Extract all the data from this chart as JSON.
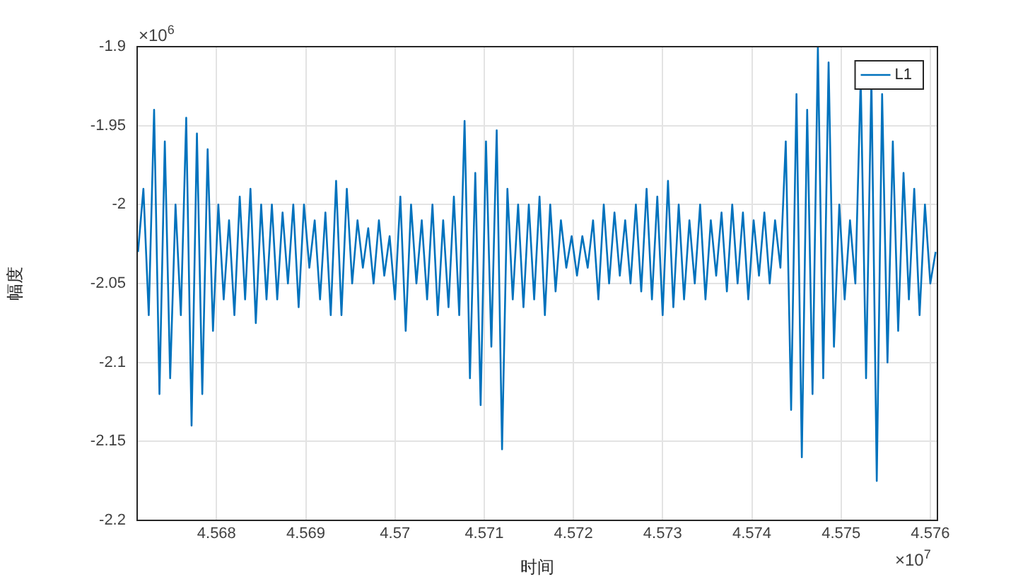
{
  "chart_data": {
    "type": "line",
    "xlabel": "时间",
    "ylabel": "幅度",
    "xlim": [
      4.56711,
      4.57608
    ],
    "xticks": [
      4.568,
      4.569,
      4.57,
      4.571,
      4.572,
      4.573,
      4.574,
      4.575,
      4.576
    ],
    "ylim": [
      -2.2,
      -1.9
    ],
    "yticks": [
      -2.2,
      -2.15,
      -2.1,
      -2.05,
      -2,
      -1.95,
      -1.9
    ],
    "grid": true,
    "legend": "top right",
    "x": [
      4.56712,
      4.56718,
      4.56724,
      4.5673,
      4.56736,
      4.56742,
      4.56748,
      4.56754,
      4.5676,
      4.56766,
      4.56772,
      4.56778,
      4.56784,
      4.5679,
      4.56796,
      4.56802,
      4.56808,
      4.56814,
      4.5682,
      4.56826,
      4.56832,
      4.56838,
      4.56844,
      4.5685,
      4.56856,
      4.56862,
      4.56868,
      4.56874,
      4.5688,
      4.56886,
      4.56892,
      4.56898,
      4.56904,
      4.5691,
      4.56916,
      4.56922,
      4.56928,
      4.56934,
      4.5694,
      4.56946,
      4.56952,
      4.56958,
      4.56964,
      4.5697,
      4.56976,
      4.56982,
      4.56988,
      4.56994,
      4.57,
      4.57006,
      4.57012,
      4.57018,
      4.57024,
      4.5703,
      4.57036,
      4.57042,
      4.57048,
      4.57054,
      4.5706,
      4.57066,
      4.57072,
      4.57078,
      4.57084,
      4.5709,
      4.57096,
      4.57102,
      4.57108,
      4.57114,
      4.5712,
      4.57126,
      4.57132,
      4.57138,
      4.57144,
      4.5715,
      4.57156,
      4.57162,
      4.57168,
      4.57174,
      4.5718,
      4.57186,
      4.57192,
      4.57198,
      4.57204,
      4.5721,
      4.57216,
      4.57222,
      4.57228,
      4.57234,
      4.5724,
      4.57246,
      4.57252,
      4.57258,
      4.57264,
      4.5727,
      4.57276,
      4.57282,
      4.57288,
      4.57294,
      4.573,
      4.57306,
      4.57312,
      4.57318,
      4.57324,
      4.5733,
      4.57336,
      4.57342,
      4.57348,
      4.57354,
      4.5736,
      4.57366,
      4.57372,
      4.57378,
      4.57384,
      4.5739,
      4.57396,
      4.57402,
      4.57408,
      4.57414,
      4.5742,
      4.57426,
      4.57432,
      4.57438,
      4.57444,
      4.5745,
      4.57456,
      4.57462,
      4.57468,
      4.57474,
      4.5748,
      4.57486,
      4.57492,
      4.57498,
      4.57504,
      4.5751,
      4.57516,
      4.57522,
      4.57528,
      4.57534,
      4.5754,
      4.57546,
      4.57552,
      4.57558,
      4.57564,
      4.5757,
      4.57576,
      4.57582,
      4.57588,
      4.57594,
      4.576,
      4.57606
    ],
    "annotations": [
      "×10$^{6}$",
      "×10$^{7}$"
    ],
    "series": [
      {
        "name": "L1",
        "color": "#0072bd",
        "values": [
          -2.03,
          -1.99,
          -2.07,
          -1.94,
          -2.12,
          -1.96,
          -2.11,
          -2.0,
          -2.07,
          -1.945,
          -2.14,
          -1.955,
          -2.12,
          -1.965,
          -2.08,
          -2.0,
          -2.06,
          -2.01,
          -2.07,
          -1.995,
          -2.06,
          -1.99,
          -2.075,
          -2.0,
          -2.06,
          -2.0,
          -2.06,
          -2.005,
          -2.05,
          -2.0,
          -2.065,
          -2.0,
          -2.04,
          -2.01,
          -2.06,
          -2.005,
          -2.07,
          -1.985,
          -2.07,
          -1.99,
          -2.05,
          -2.01,
          -2.04,
          -2.015,
          -2.05,
          -2.01,
          -2.045,
          -2.02,
          -2.06,
          -1.995,
          -2.08,
          -2.0,
          -2.05,
          -2.01,
          -2.06,
          -2.0,
          -2.07,
          -2.01,
          -2.065,
          -1.995,
          -2.07,
          -1.947,
          -2.11,
          -1.98,
          -2.127,
          -1.96,
          -2.09,
          -1.953,
          -2.155,
          -1.99,
          -2.06,
          -2.0,
          -2.065,
          -2.0,
          -2.06,
          -1.995,
          -2.07,
          -2.0,
          -2.055,
          -2.01,
          -2.04,
          -2.02,
          -2.045,
          -2.02,
          -2.04,
          -2.01,
          -2.06,
          -2.0,
          -2.05,
          -2.005,
          -2.045,
          -2.01,
          -2.05,
          -2.0,
          -2.055,
          -1.99,
          -2.06,
          -1.995,
          -2.07,
          -1.985,
          -2.065,
          -2.0,
          -2.06,
          -2.01,
          -2.05,
          -2.0,
          -2.06,
          -2.01,
          -2.045,
          -2.005,
          -2.055,
          -2.0,
          -2.05,
          -2.005,
          -2.06,
          -2.01,
          -2.045,
          -2.005,
          -2.05,
          -2.01,
          -2.04,
          -1.96,
          -2.13,
          -1.93,
          -2.16,
          -1.94,
          -2.12,
          -1.9,
          -2.11,
          -1.91,
          -2.09,
          -2.0,
          -2.06,
          -2.01,
          -2.05,
          -1.92,
          -2.11,
          -1.92,
          -2.175,
          -1.93,
          -2.1,
          -1.96,
          -2.08,
          -1.98,
          -2.06,
          -1.99,
          -2.07,
          -2.0,
          -2.05,
          -2.03
        ]
      }
    ]
  }
}
